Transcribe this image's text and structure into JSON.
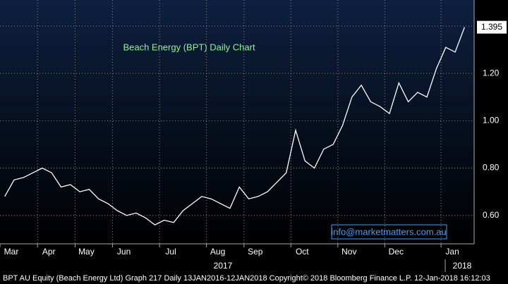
{
  "chart_data": {
    "type": "line",
    "title": "Beach Energy (BPT) Daily Chart",
    "categories": [
      "Mar",
      null,
      null,
      null,
      "Apr",
      null,
      null,
      null,
      "May",
      null,
      null,
      null,
      "Jun",
      null,
      null,
      null,
      null,
      "Jul",
      null,
      null,
      null,
      null,
      "Aug",
      null,
      null,
      null,
      "Sep",
      null,
      null,
      null,
      null,
      "Oct",
      null,
      null,
      null,
      null,
      "Nov",
      null,
      null,
      null,
      null,
      "Dec",
      null,
      null,
      null,
      null,
      null,
      "Jan",
      null,
      null
    ],
    "series": [
      {
        "name": "BPT AU Equity",
        "color": "#ffffff",
        "values": [
          0.68,
          0.75,
          0.76,
          0.78,
          0.8,
          0.78,
          0.72,
          0.73,
          0.7,
          0.71,
          0.67,
          0.65,
          0.62,
          0.6,
          0.61,
          0.59,
          0.56,
          0.58,
          0.57,
          0.62,
          0.65,
          0.68,
          0.67,
          0.65,
          0.63,
          0.72,
          0.67,
          0.68,
          0.7,
          0.74,
          0.78,
          0.96,
          0.83,
          0.8,
          0.88,
          0.9,
          0.98,
          1.1,
          1.15,
          1.08,
          1.06,
          1.03,
          1.16,
          1.08,
          1.12,
          1.1,
          1.22,
          1.31,
          1.29,
          1.395
        ]
      }
    ],
    "last_label": "1.395",
    "ylim": [
      0.48,
      1.51
    ],
    "yticks": [
      {
        "value": 0.6,
        "label": "0.60"
      },
      {
        "value": 0.8,
        "label": "0.80"
      },
      {
        "value": 1.0,
        "label": "1.00"
      },
      {
        "value": 1.2,
        "label": "1.20"
      },
      1.4
    ],
    "grid": true,
    "year_labels": [
      "2017",
      "2018"
    ],
    "watermark": "info@marketmatters.com.au",
    "footer": "BPT AU Equity (Beach Energy Ltd) Graph 217  Daily 13JAN2016-12JAN2018 Copyright© 2018 Bloomberg Finance L.P. 12-Jan-2018 16:12:03"
  }
}
